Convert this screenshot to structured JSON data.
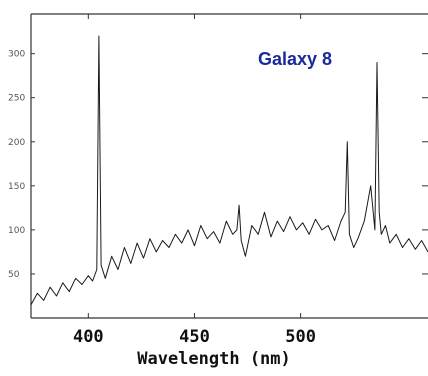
{
  "chart_data": {
    "type": "line",
    "title": "Galaxy 8",
    "xlabel": "Wavelength (nm)",
    "ylabel": "",
    "xlim": [
      373,
      560
    ],
    "ylim": [
      0,
      345
    ],
    "x_ticks": [
      {
        "value": 400,
        "label": "400"
      },
      {
        "value": 450,
        "label": "450"
      },
      {
        "value": 500,
        "label": "500"
      }
    ],
    "y_ticks": [
      {
        "value": 50,
        "label": "50"
      },
      {
        "value": 100,
        "label": "100"
      },
      {
        "value": 150,
        "label": "150"
      },
      {
        "value": 200,
        "label": "200"
      },
      {
        "value": 250,
        "label": "250"
      },
      {
        "value": 300,
        "label": "300"
      }
    ],
    "grid": false,
    "legend": "none",
    "colors": {
      "line": "#1a1a1a",
      "title": "#1a2a9a",
      "axis": "#333333"
    },
    "series": [
      {
        "x": [
          373,
          376,
          379,
          382,
          385,
          388,
          391,
          394,
          397,
          400,
          402,
          404,
          405,
          406,
          408,
          411,
          414,
          417,
          420,
          423,
          426,
          429,
          432,
          435,
          438,
          441,
          444,
          447,
          450,
          453,
          456,
          459,
          462,
          465,
          468,
          470,
          471,
          472,
          474,
          477,
          480,
          483,
          486,
          489,
          492,
          495,
          498,
          501,
          504,
          507,
          510,
          513,
          516,
          519,
          521,
          522,
          523,
          525,
          527,
          530,
          533,
          535,
          536,
          537,
          538,
          540,
          542,
          545,
          548,
          551,
          554,
          557,
          560
        ],
        "y": [
          15,
          28,
          20,
          35,
          25,
          40,
          30,
          45,
          38,
          48,
          42,
          55,
          320,
          60,
          45,
          70,
          55,
          80,
          62,
          85,
          68,
          90,
          75,
          88,
          80,
          95,
          85,
          100,
          82,
          105,
          90,
          98,
          85,
          110,
          95,
          100,
          128,
          88,
          70,
          105,
          95,
          120,
          92,
          110,
          98,
          115,
          100,
          108,
          95,
          112,
          100,
          105,
          88,
          110,
          120,
          200,
          95,
          80,
          90,
          110,
          150,
          100,
          290,
          120,
          95,
          105,
          85,
          95,
          80,
          90,
          78,
          88,
          75
        ]
      }
    ]
  }
}
